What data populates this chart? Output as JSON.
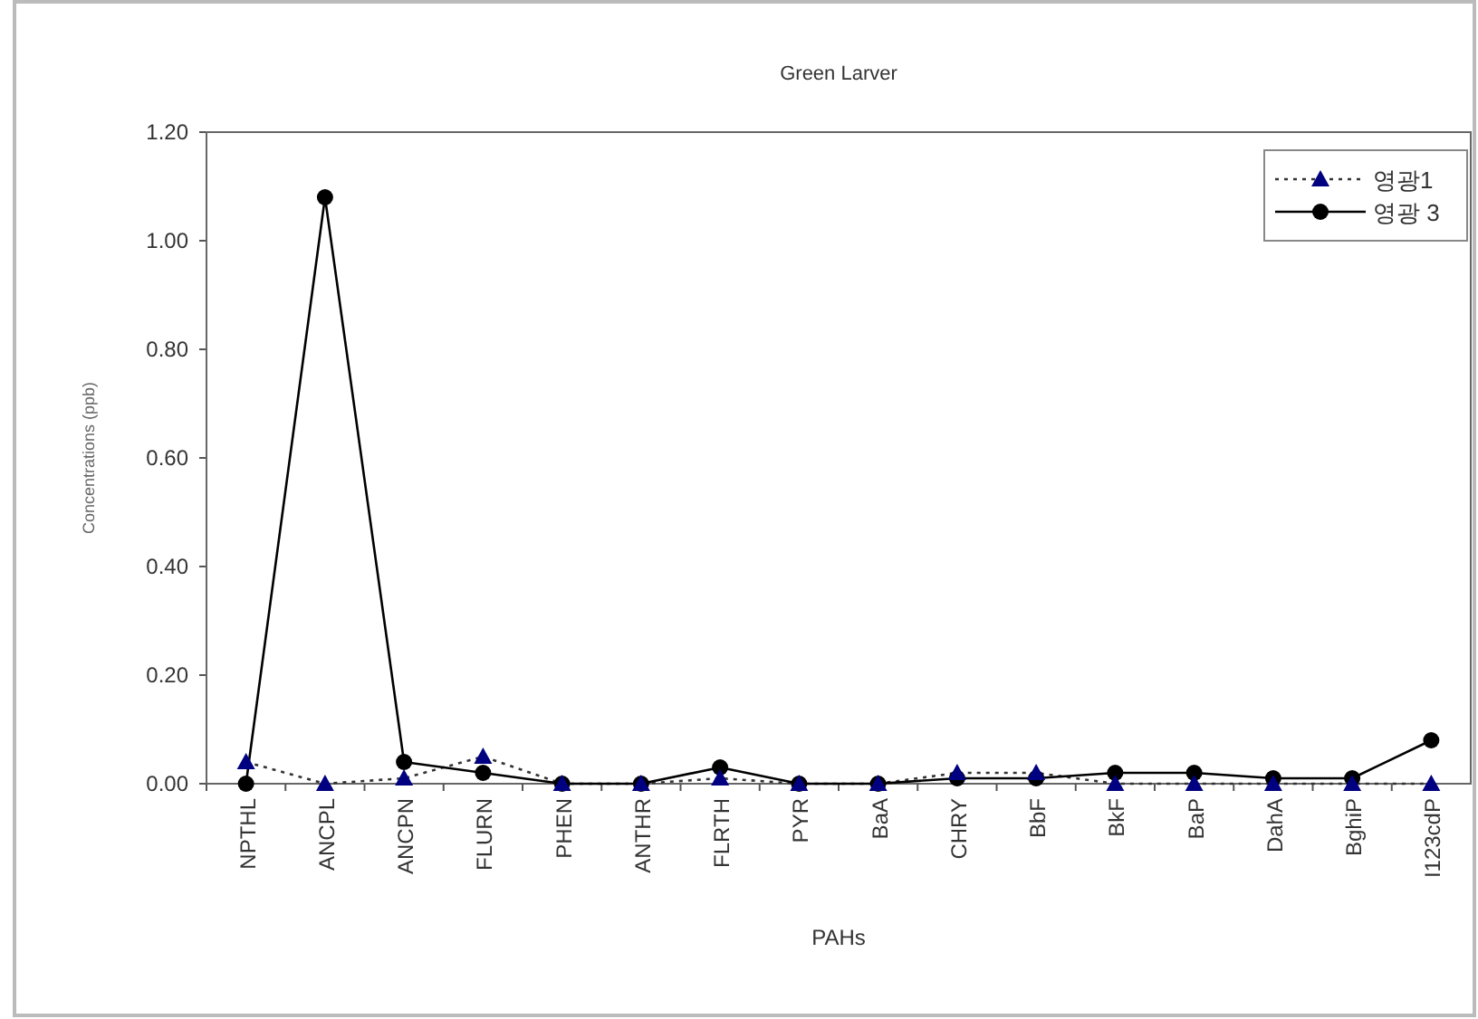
{
  "chart_data": {
    "type": "line",
    "title": "Green Larver",
    "xlabel": "PAHs",
    "ylabel": "Concentrations (ppb)",
    "categories": [
      "NPTHL",
      "ANCPL",
      "ANCPN",
      "FLURN",
      "PHEN",
      "ANTHR",
      "FLRTH",
      "PYR",
      "BaA",
      "CHRY",
      "BbF",
      "BkF",
      "BaP",
      "DahA",
      "BghiP",
      "I123cdP"
    ],
    "series": [
      {
        "name": "영광1",
        "color": "#000080",
        "marker": "triangle",
        "line_style": "dotted",
        "values": [
          0.04,
          0.0,
          0.01,
          0.05,
          0.0,
          0.0,
          0.01,
          0.0,
          0.0,
          0.02,
          0.02,
          0.0,
          0.0,
          0.0,
          0.0,
          0.0
        ]
      },
      {
        "name": "영광 3",
        "color": "#000000",
        "marker": "circle",
        "line_style": "solid",
        "values": [
          0.0,
          1.08,
          0.04,
          0.02,
          0.0,
          0.0,
          0.03,
          0.0,
          0.0,
          0.01,
          0.01,
          0.02,
          0.02,
          0.01,
          0.01,
          0.08
        ]
      }
    ],
    "ylim": [
      0,
      1.2
    ],
    "yticks": [
      {
        "value": 0,
        "label": "0.00"
      },
      {
        "value": 0.2,
        "label": "0.20"
      },
      {
        "value": 0.4,
        "label": "0.40"
      },
      {
        "value": 0.6,
        "label": "0.60"
      },
      {
        "value": 0.8,
        "label": "0.80"
      },
      {
        "value": 1.0,
        "label": "1.00"
      },
      {
        "value": 1.2,
        "label": "1.20"
      }
    ],
    "grid": false,
    "legend": "top right"
  }
}
